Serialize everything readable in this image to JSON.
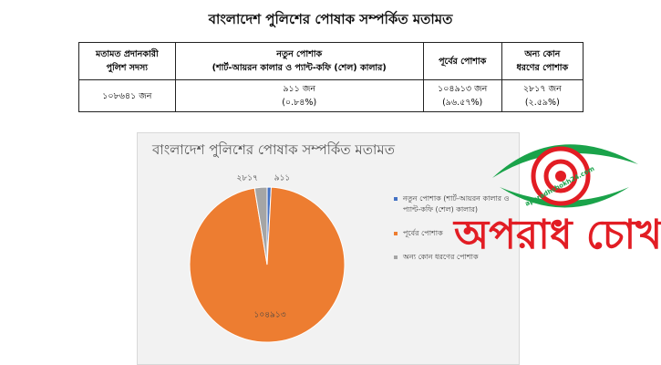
{
  "title": "বাংলাদেশ পুলিশের পোষাক সম্পর্কিত মতামত",
  "table": {
    "header": [
      [
        "মতামত প্রদানকারী",
        "পুলিশ সদস্য"
      ],
      [
        "নতুন পোশাক",
        "(শার্ট-আয়রন কালার ও প্যান্ট-কফি (শেল) কালার)"
      ],
      [
        "পূর্বের পোশাক"
      ],
      [
        "অন্য কোন",
        "ধরণের পোশাক"
      ]
    ],
    "rows": [
      [
        [
          "১০৮৬৪১ জন"
        ],
        [
          "৯১১ জন",
          "(০.৮৪%)"
        ],
        [
          "১০৪৯১৩ জন",
          "(৯৬.৫৭%)"
        ],
        [
          "২৮১৭ জন",
          "(২.৫৯%)"
        ]
      ]
    ]
  },
  "chart_data": {
    "type": "pie",
    "title": "বাংলাদেশ পুলিশের পোষাক সম্পর্কিত মতামত",
    "categories": [
      "নতুন পোশাক (শার্ট-আয়রন কালার ও প্যান্ট-কফি (শেল) কালার)",
      "পূর্বের পোশাক",
      "অন্য কোন ধরণের পোশাক"
    ],
    "values": [
      911,
      104913,
      2817
    ],
    "value_labels": [
      "৯১১",
      "১০৪৯১৩",
      "২৮১৭"
    ],
    "colors": [
      "#4472c4",
      "#ed7d31",
      "#a5a5a5"
    ],
    "legend": "right"
  },
  "watermark": {
    "text": "অপরাধ চোখ",
    "site": "aparadhchokh24.com"
  }
}
